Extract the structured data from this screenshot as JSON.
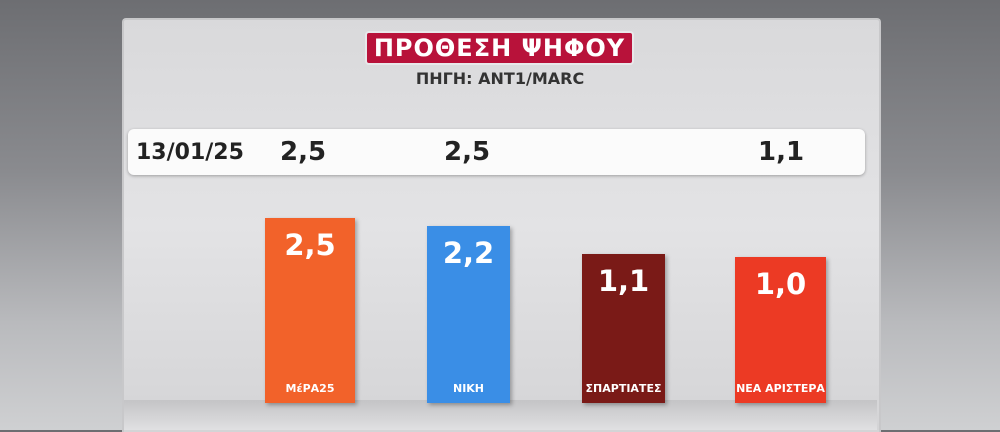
{
  "title": "ΠΡΟΘΕΣΗ ΨΗΦΟΥ",
  "source": "ΠΗΓΗ: ANT1/MARC",
  "chart_data": {
    "type": "bar",
    "title": "ΠΡΟΘΕΣΗ ΨΗΦΟΥ",
    "subtitle": "ΠΗΓΗ: ANT1/MARC",
    "categories": [
      "ΜέΡΑ25",
      "ΝΙΚΗ",
      "ΣΠΑΡΤΙΑΤΕΣ",
      "ΝΕΑ ΑΡΙΣΤΕΡΑ"
    ],
    "values": [
      2.5,
      2.2,
      1.1,
      1.0
    ],
    "value_labels": [
      "2,5",
      "2,2",
      "1,1",
      "1,0"
    ],
    "colors": [
      "#f2622a",
      "#3a8ee6",
      "#7a1a17",
      "#ec3a24"
    ],
    "previous": {
      "date": "13/01/25",
      "labels": [
        "2,5",
        "2,5",
        "",
        "1,1"
      ]
    }
  }
}
